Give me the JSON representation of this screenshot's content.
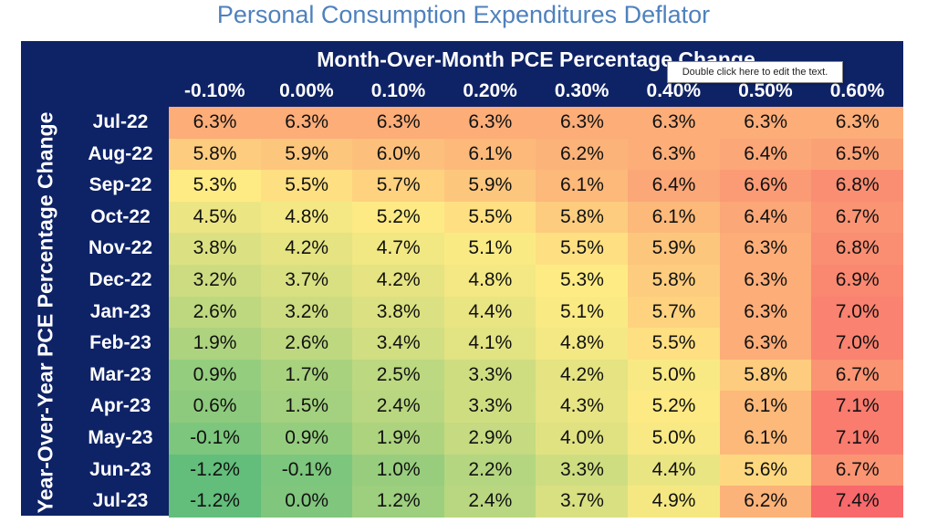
{
  "chart_data": {
    "type": "heatmap",
    "title": "Personal Consumption Expenditures Deflator",
    "xlabel": "Month-Over-Month PCE Percentage Change",
    "ylabel": "Year-Over-Year PCE Percentage Change",
    "x": [
      "-0.10%",
      "0.00%",
      "0.10%",
      "0.20%",
      "0.30%",
      "0.40%",
      "0.50%",
      "0.60%"
    ],
    "y": [
      "Jul-22",
      "Aug-22",
      "Sep-22",
      "Oct-22",
      "Nov-22",
      "Dec-22",
      "Jan-23",
      "Feb-23",
      "Mar-23",
      "Apr-23",
      "May-23",
      "Jun-23",
      "Jul-23"
    ],
    "values": [
      [
        6.3,
        6.3,
        6.3,
        6.3,
        6.3,
        6.3,
        6.3,
        6.3
      ],
      [
        5.8,
        5.9,
        6.0,
        6.1,
        6.2,
        6.3,
        6.4,
        6.5
      ],
      [
        5.3,
        5.5,
        5.7,
        5.9,
        6.1,
        6.4,
        6.6,
        6.8
      ],
      [
        4.5,
        4.8,
        5.2,
        5.5,
        5.8,
        6.1,
        6.4,
        6.7
      ],
      [
        3.8,
        4.2,
        4.7,
        5.1,
        5.5,
        5.9,
        6.3,
        6.8
      ],
      [
        3.2,
        3.7,
        4.2,
        4.8,
        5.3,
        5.8,
        6.3,
        6.9
      ],
      [
        2.6,
        3.2,
        3.8,
        4.4,
        5.1,
        5.7,
        6.3,
        7.0
      ],
      [
        1.9,
        2.6,
        3.4,
        4.1,
        4.8,
        5.5,
        6.3,
        7.0
      ],
      [
        0.9,
        1.7,
        2.5,
        3.3,
        4.2,
        5.0,
        5.8,
        6.7
      ],
      [
        0.6,
        1.5,
        2.4,
        3.3,
        4.3,
        5.2,
        6.1,
        7.1
      ],
      [
        -0.1,
        0.9,
        1.9,
        2.9,
        4.0,
        5.0,
        6.1,
        7.1
      ],
      [
        -1.2,
        -0.1,
        1.0,
        2.2,
        3.3,
        4.4,
        5.6,
        6.7
      ],
      [
        -1.2,
        0.0,
        1.2,
        2.4,
        3.7,
        4.9,
        6.2,
        7.4
      ]
    ],
    "value_format": "percent, 1 decimal",
    "colors": {
      "low": "#63be7b",
      "mid": "#ffeb84",
      "high": "#f8696b",
      "panel": "#0e2266"
    }
  },
  "tooltip": {
    "text": "Double click here to edit the text."
  }
}
